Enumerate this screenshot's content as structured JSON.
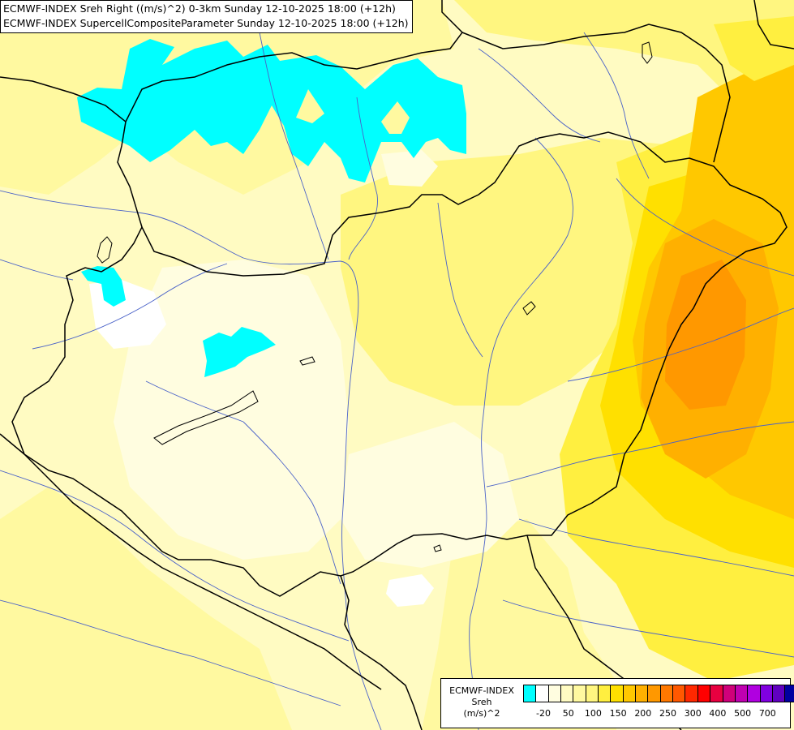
{
  "header": {
    "line1": "ECMWF-INDEX Sreh Right ((m/s)^2) 0-3km Sunday 12-10-2025 18:00 (+12h)",
    "line2": "ECMWF-INDEX SupercellCompositeParameter Sunday 12-10-2025 18:00 (+12h)"
  },
  "legend": {
    "title": [
      "ECMWF-INDEX",
      "Sreh",
      "(m/s)^2"
    ],
    "colors": [
      "#00ffff",
      "#ffffff",
      "#fffde0",
      "#fffbc2",
      "#fff9a0",
      "#fff680",
      "#ffef40",
      "#ffe000",
      "#ffc800",
      "#ffb000",
      "#ff9800",
      "#ff7800",
      "#ff5800",
      "#ff2800",
      "#ff0000",
      "#e80040",
      "#d0007a",
      "#c000b0",
      "#b000e0",
      "#8000e0",
      "#6000c0",
      "#0000a0"
    ],
    "tick_labels": [
      "-20",
      "50",
      "100",
      "150",
      "200",
      "250",
      "300",
      "400",
      "500",
      "700"
    ],
    "tick_index": [
      1,
      3,
      5,
      7,
      9,
      11,
      13,
      15,
      17,
      19
    ]
  }
}
